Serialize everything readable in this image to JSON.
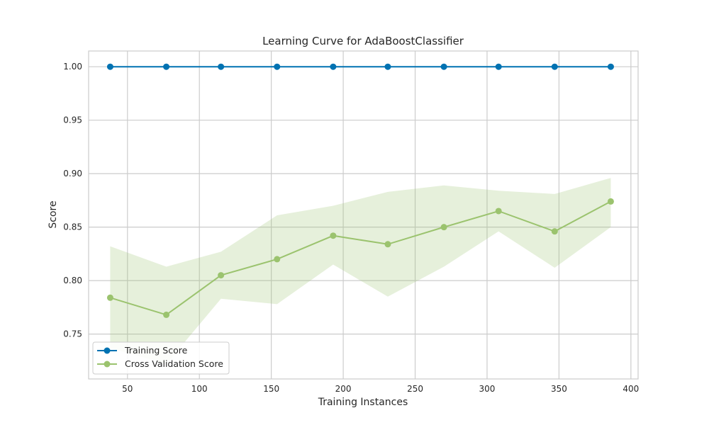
{
  "chart_data": {
    "type": "line",
    "title": "Learning Curve for AdaBoostClassifier",
    "xlabel": "Training Instances",
    "ylabel": "Score",
    "xlim": [
      23,
      405
    ],
    "ylim": [
      0.708,
      1.0147
    ],
    "xticks": [
      50,
      100,
      150,
      200,
      250,
      300,
      350,
      400
    ],
    "yticks": [
      0.75,
      0.8,
      0.85,
      0.9,
      0.95,
      1.0
    ],
    "ytick_labels": [
      "0.75",
      "0.80",
      "0.85",
      "0.90",
      "0.95",
      "1.00"
    ],
    "grid": true,
    "legend_position": "lower-left",
    "x": [
      38,
      77,
      115,
      154,
      193,
      231,
      270,
      308,
      347,
      386
    ],
    "series": [
      {
        "name": "Training Score",
        "color": "#0072b2",
        "values": [
          1.0,
          1.0,
          1.0,
          1.0,
          1.0,
          1.0,
          1.0,
          1.0,
          1.0,
          1.0
        ],
        "band_lower": [
          1.0,
          1.0,
          1.0,
          1.0,
          1.0,
          1.0,
          1.0,
          1.0,
          1.0,
          1.0
        ],
        "band_upper": [
          1.0,
          1.0,
          1.0,
          1.0,
          1.0,
          1.0,
          1.0,
          1.0,
          1.0,
          1.0
        ]
      },
      {
        "name": "Cross Validation Score",
        "color": "#9bc36e",
        "values": [
          0.784,
          0.768,
          0.805,
          0.82,
          0.842,
          0.834,
          0.85,
          0.865,
          0.846,
          0.874
        ],
        "band_lower": [
          0.737,
          0.722,
          0.783,
          0.778,
          0.815,
          0.785,
          0.813,
          0.846,
          0.812,
          0.85
        ],
        "band_upper": [
          0.832,
          0.813,
          0.827,
          0.861,
          0.87,
          0.883,
          0.889,
          0.884,
          0.881,
          0.896
        ]
      }
    ]
  }
}
